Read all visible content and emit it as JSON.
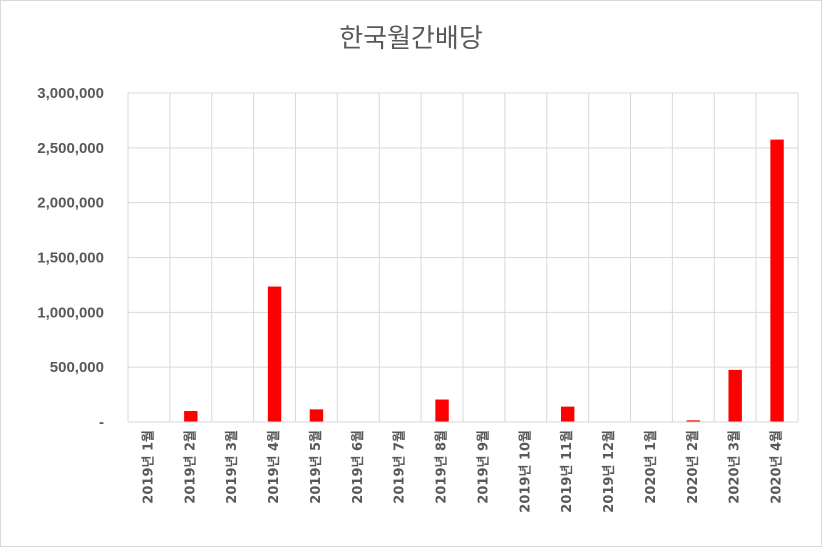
{
  "chart_data": {
    "type": "bar",
    "title": "한국월간배당",
    "categories": [
      "2019년 1월",
      "2019년 2월",
      "2019년 3월",
      "2019년 4월",
      "2019년 5월",
      "2019년 6월",
      "2019년 7월",
      "2019년 8월",
      "2019년 9월",
      "2019년 10월",
      "2019년 11월",
      "2019년 12월",
      "2020년 1월",
      "2020년 2월",
      "2020년 3월",
      "2020년 4월"
    ],
    "values": [
      0,
      100000,
      0,
      1235000,
      115000,
      0,
      0,
      205000,
      0,
      0,
      140000,
      0,
      0,
      15000,
      475000,
      2575000
    ],
    "ylim": [
      0,
      3000000
    ],
    "yticks": [
      0,
      500000,
      1000000,
      1500000,
      2000000,
      2500000,
      3000000
    ],
    "ytick_labels": [
      "-",
      "500,000",
      "1,000,000",
      "1,500,000",
      "2,000,000",
      "2,500,000",
      "3,000,000"
    ],
    "bar_color": "#ff0000",
    "grid": true,
    "legend": "none"
  }
}
